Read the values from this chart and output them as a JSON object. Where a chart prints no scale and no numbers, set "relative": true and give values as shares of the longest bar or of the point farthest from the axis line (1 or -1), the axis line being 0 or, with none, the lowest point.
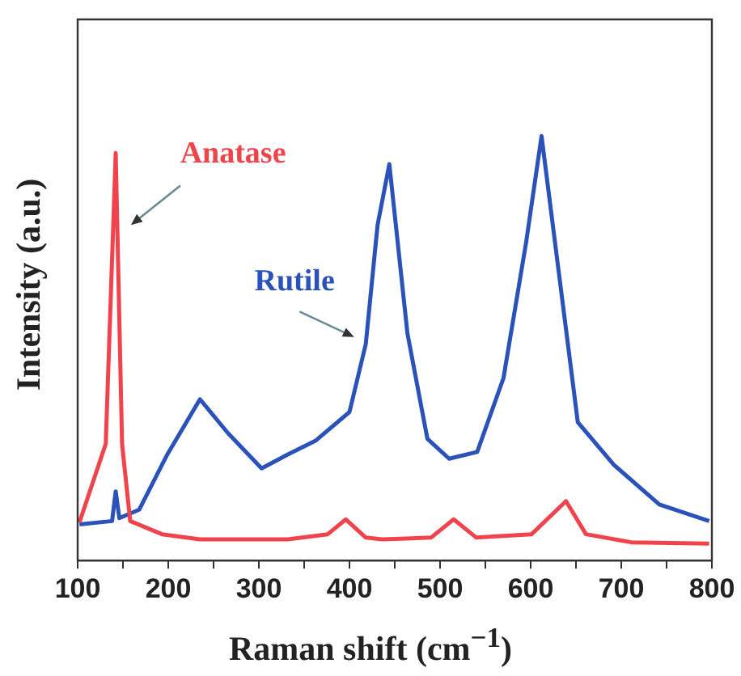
{
  "chart_data": {
    "type": "line",
    "relative": true,
    "xlabel": "Raman shift (cm$^{−1}$)",
    "ylabel": "Intensity (a.u.)",
    "tick_labels": "x",
    "marker": "none",
    "line_style": "solid",
    "xlim": [
      100,
      800
    ],
    "xticks": [
      100,
      {
        "value": 150,
        "label": null
      },
      200,
      {
        "value": 250,
        "label": null
      },
      300,
      {
        "value": 350,
        "label": null
      },
      400,
      {
        "value": 450,
        "label": null
      },
      500,
      {
        "value": 550,
        "label": null
      },
      600,
      {
        "value": 650,
        "label": null
      },
      700,
      {
        "value": 750,
        "label": null
      },
      800
    ],
    "series": [
      {
        "name": "Anatase",
        "color": "#f0444c",
        "x": [
          102,
          131,
          142,
          149,
          158,
          193,
          235,
          332,
          376,
          396,
          418,
          436,
          490,
          515,
          540,
          601,
          639,
          661,
          711,
          797
        ],
        "values": [
          0.09,
          0.275,
          0.96,
          0.275,
          0.093,
          0.062,
          0.05,
          0.05,
          0.062,
          0.097,
          0.054,
          0.05,
          0.054,
          0.097,
          0.054,
          0.062,
          0.14,
          0.062,
          0.043,
          0.04
        ]
      },
      {
        "name": "Rutile",
        "color": "#2a52b8",
        "x": [
          102,
          138,
          142,
          146,
          168,
          199,
          235,
          266,
          303,
          332,
          363,
          400,
          418,
          431,
          444,
          464,
          486,
          510,
          541,
          570,
          595,
          612,
          632,
          652,
          692,
          742,
          797
        ],
        "values": [
          0.085,
          0.093,
          0.163,
          0.1,
          0.12,
          0.25,
          0.38,
          0.3,
          0.217,
          0.25,
          0.283,
          0.35,
          0.51,
          0.79,
          0.934,
          0.535,
          0.287,
          0.24,
          0.256,
          0.43,
          0.75,
          1,
          0.663,
          0.326,
          0.225,
          0.132,
          0.093
        ]
      }
    ]
  }
}
